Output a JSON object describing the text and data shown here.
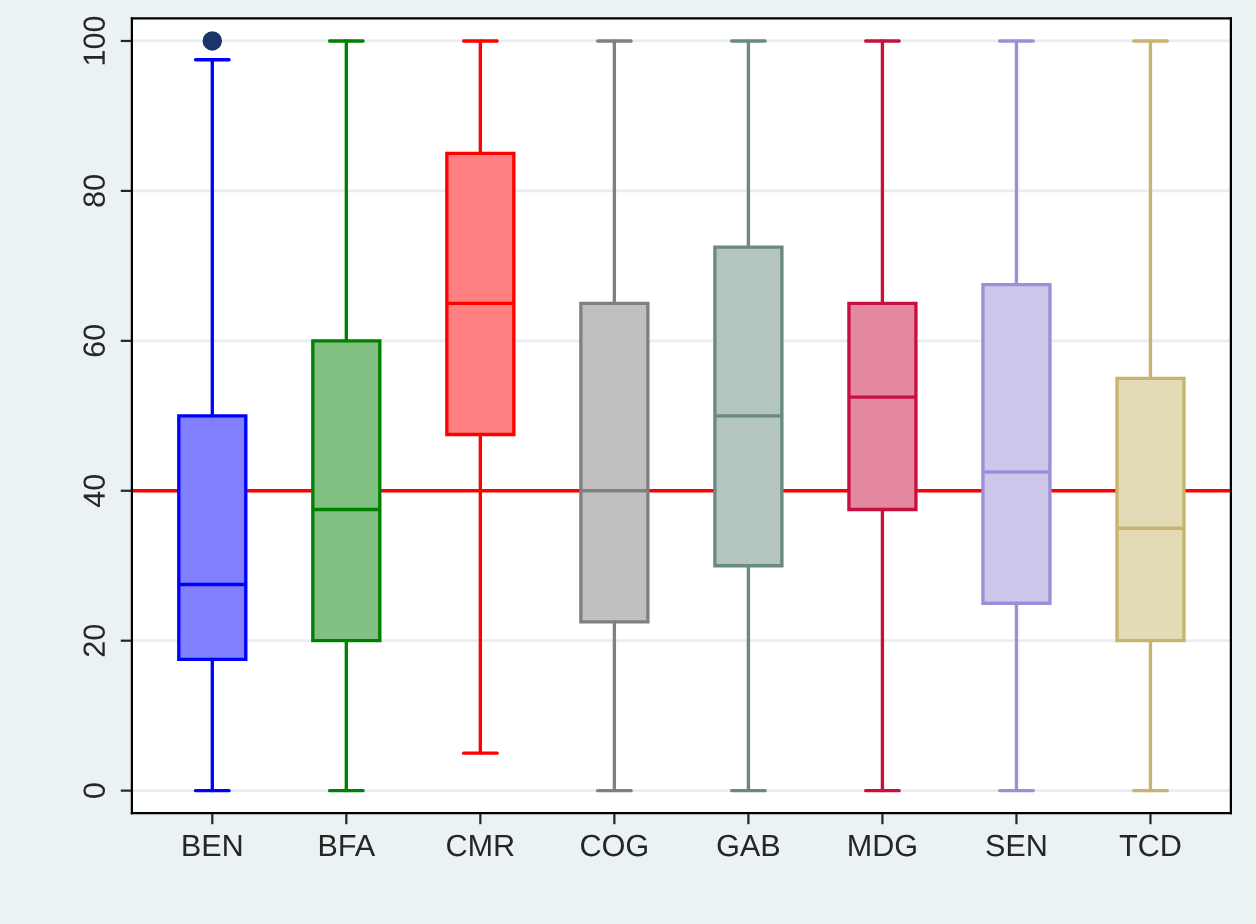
{
  "chart_data": {
    "type": "box",
    "categories": [
      "BEN",
      "BFA",
      "CMR",
      "COG",
      "GAB",
      "MDG",
      "SEN",
      "TCD"
    ],
    "boxes": [
      {
        "low": 0,
        "q1": 17.5,
        "median": 27.5,
        "q3": 50,
        "high": 97.5,
        "outliers": [
          100
        ]
      },
      {
        "low": 0,
        "q1": 20,
        "median": 37.5,
        "q3": 60,
        "high": 100
      },
      {
        "low": 5,
        "q1": 47.5,
        "median": 65,
        "q3": 85,
        "high": 100
      },
      {
        "low": 0,
        "q1": 22.5,
        "median": 40,
        "q3": 65,
        "high": 100
      },
      {
        "low": 0,
        "q1": 30,
        "median": 50,
        "q3": 72.5,
        "high": 100
      },
      {
        "low": 0,
        "q1": 37.5,
        "median": 52.5,
        "q3": 65,
        "high": 100
      },
      {
        "low": 0,
        "q1": 25,
        "median": 42.5,
        "q3": 67.5,
        "high": 100
      },
      {
        "low": 0,
        "q1": 20,
        "median": 35,
        "q3": 55,
        "high": 100
      }
    ],
    "colors": [
      "#0000ff",
      "#008000",
      "#ff0000",
      "#808080",
      "#6a8a80",
      "#c8103e",
      "#9b8fd8",
      "#c8b46e"
    ],
    "ylim": [
      -3,
      103
    ],
    "yticks": [
      0,
      20,
      40,
      60,
      80,
      100
    ],
    "grid": "y",
    "ref_lines": [
      {
        "axis": "y",
        "value": 40,
        "color": "#ff0000"
      }
    ]
  }
}
